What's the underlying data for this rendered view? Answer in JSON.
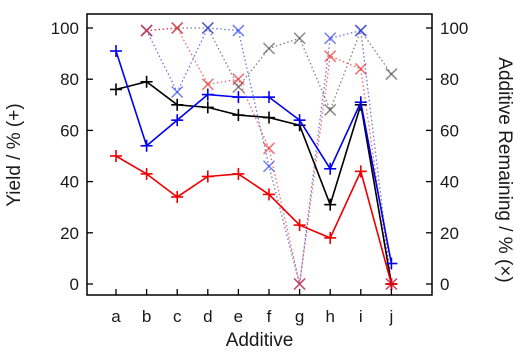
{
  "chart_data": {
    "type": "line",
    "xlabel": "Additive",
    "ylabel_left": "Yield / % (+)",
    "ylabel_right": "Additive Remaining / % (×)",
    "categories": [
      "a",
      "b",
      "c",
      "d",
      "e",
      "f",
      "g",
      "h",
      "i",
      "j"
    ],
    "ylim": [
      0,
      100
    ],
    "yticks": [
      0,
      20,
      40,
      60,
      80,
      100
    ],
    "grid": false,
    "legend": "none",
    "yield_series": [
      {
        "color": "#000000",
        "marker": "+",
        "values": [
          76,
          79,
          70,
          69,
          66,
          65,
          62,
          31,
          70,
          0
        ]
      },
      {
        "color": "#0000ee",
        "marker": "+",
        "values": [
          91,
          54,
          64,
          74,
          73,
          73,
          64,
          45,
          71,
          8
        ]
      },
      {
        "color": "#ee0000",
        "marker": "+",
        "values": [
          50,
          43,
          34,
          42,
          43,
          35,
          23,
          18,
          44,
          0
        ]
      }
    ],
    "remaining_series": [
      {
        "color": "#555555",
        "marker": "x",
        "values": [
          null,
          99,
          100,
          100,
          77,
          92,
          96,
          68,
          99,
          82
        ]
      },
      {
        "color": "#3344ee",
        "marker": "x",
        "values": [
          null,
          99,
          75,
          100,
          99,
          46,
          0,
          96,
          99,
          0
        ]
      },
      {
        "color": "#ee3333",
        "marker": "x",
        "values": [
          null,
          99,
          100,
          78,
          80,
          53,
          0,
          89,
          84,
          0
        ]
      }
    ]
  }
}
